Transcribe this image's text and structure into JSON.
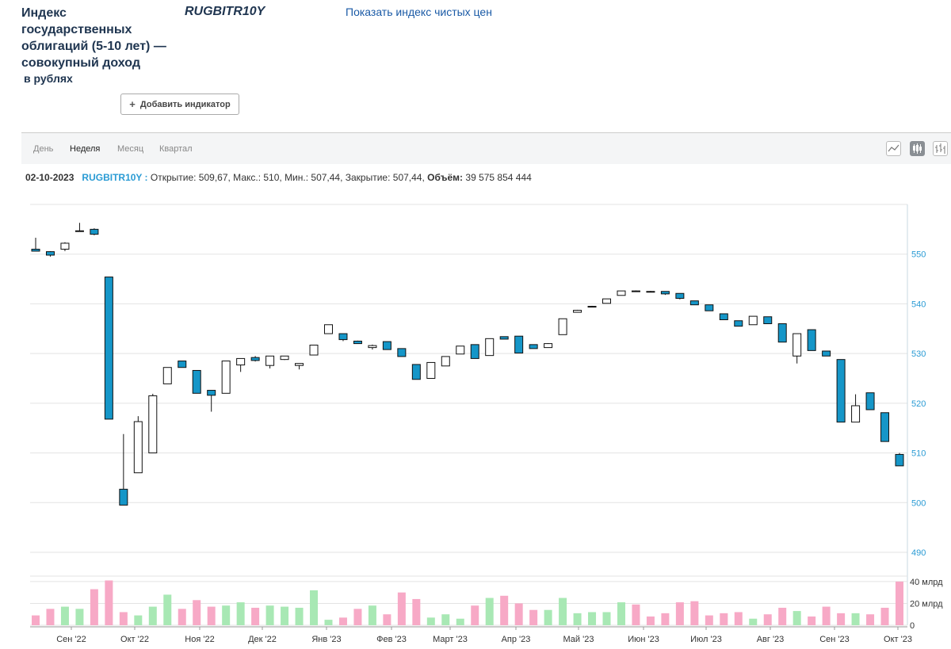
{
  "header": {
    "title": "Индекс государственных облигаций (5-10 лет) — совокупный доход",
    "subtitle": "в рублях",
    "ticker": "RUGBITR10Y",
    "clean_price_link": "Показать индекс чистых цен",
    "add_indicator_label": "Добавить индикатор",
    "add_indicator_icon": "plus-icon"
  },
  "toolbar": {
    "tabs": [
      "День",
      "Неделя",
      "Месяц",
      "Квартал"
    ],
    "active_tab": "Неделя",
    "icons": [
      "line-chart-icon",
      "candlestick-icon",
      "ohlc-bars-icon"
    ]
  },
  "info_bar": {
    "date": "02-10-2023",
    "symbol": "RUGBITR10Y :",
    "ohlc_text": "Открытие: 509,67, Макс.: 510, Мин.: 507,44, Закрытие: 507,44,",
    "volume_label": "Объём:",
    "volume_value": "39 575 854 444"
  },
  "colors": {
    "down": "#1596c8",
    "up": "#ffffff",
    "vol_up": "#a8e8b4",
    "vol_down": "#f7a9c6",
    "axis_text": "#2a9bd4",
    "grid": "#e3e3e3"
  },
  "chart_data": {
    "type": "candlestick",
    "title": "",
    "price_ylim": [
      490,
      560
    ],
    "price_ticks": [
      490,
      500,
      510,
      520,
      530,
      540,
      550
    ],
    "volume_ticks": [
      "0",
      "20 млрд",
      "40 млрд"
    ],
    "volume_unit": "млрд",
    "x_tick_labels": [
      "Сен '22",
      "Окт '22",
      "Ноя '22",
      "Дек '22",
      "Янв '23",
      "Фев '23",
      "Март '23",
      "Апр '23",
      "Май '23",
      "Июн '23",
      "Июл '23",
      "Авг '23",
      "Сен '23",
      "Окт '23"
    ],
    "candles": [
      {
        "o": 551.0,
        "h": 553.3,
        "l": 550.6,
        "c": 550.6,
        "v": 9
      },
      {
        "o": 550.5,
        "h": 550.6,
        "l": 549.5,
        "c": 549.8,
        "v": 15
      },
      {
        "o": 551.0,
        "h": 552.4,
        "l": 550.6,
        "c": 552.2,
        "v": 17
      },
      {
        "o": 554.6,
        "h": 556.3,
        "l": 554.6,
        "c": 554.7,
        "v": 15
      },
      {
        "o": 555.0,
        "h": 555.2,
        "l": 553.8,
        "c": 554.0,
        "v": 33
      },
      {
        "o": 545.4,
        "h": 545.4,
        "l": 516.8,
        "c": 516.8,
        "v": 41
      },
      {
        "o": 502.7,
        "h": 513.8,
        "l": 499.5,
        "c": 499.5,
        "v": 12
      },
      {
        "o": 506.0,
        "h": 517.4,
        "l": 506.0,
        "c": 516.3,
        "v": 9
      },
      {
        "o": 510.0,
        "h": 521.9,
        "l": 510.0,
        "c": 521.5,
        "v": 17
      },
      {
        "o": 523.9,
        "h": 527.2,
        "l": 523.9,
        "c": 527.2,
        "v": 28
      },
      {
        "o": 528.5,
        "h": 528.5,
        "l": 527.2,
        "c": 527.2,
        "v": 15
      },
      {
        "o": 526.6,
        "h": 526.6,
        "l": 522.0,
        "c": 522.0,
        "v": 23
      },
      {
        "o": 522.6,
        "h": 522.6,
        "l": 518.3,
        "c": 521.6,
        "v": 17
      },
      {
        "o": 522.0,
        "h": 528.5,
        "l": 522.0,
        "c": 528.5,
        "v": 18
      },
      {
        "o": 527.7,
        "h": 529.0,
        "l": 526.3,
        "c": 529.0,
        "v": 21
      },
      {
        "o": 529.2,
        "h": 529.5,
        "l": 528.4,
        "c": 528.6,
        "v": 16
      },
      {
        "o": 527.6,
        "h": 529.5,
        "l": 527.0,
        "c": 529.5,
        "v": 18
      },
      {
        "o": 528.8,
        "h": 529.5,
        "l": 528.7,
        "c": 529.5,
        "v": 17
      },
      {
        "o": 527.6,
        "h": 528.0,
        "l": 526.8,
        "c": 528.0,
        "v": 16
      },
      {
        "o": 529.7,
        "h": 531.7,
        "l": 529.7,
        "c": 531.7,
        "v": 32
      },
      {
        "o": 534.0,
        "h": 535.8,
        "l": 534.0,
        "c": 535.8,
        "v": 5
      },
      {
        "o": 534.0,
        "h": 534.0,
        "l": 532.5,
        "c": 532.8,
        "v": 7
      },
      {
        "o": 532.5,
        "h": 532.6,
        "l": 532.0,
        "c": 532.0,
        "v": 15
      },
      {
        "o": 531.2,
        "h": 531.8,
        "l": 530.8,
        "c": 531.6,
        "v": 18
      },
      {
        "o": 532.4,
        "h": 532.4,
        "l": 530.8,
        "c": 530.8,
        "v": 10
      },
      {
        "o": 531.0,
        "h": 531.0,
        "l": 529.4,
        "c": 529.4,
        "v": 30
      },
      {
        "o": 527.8,
        "h": 527.8,
        "l": 524.8,
        "c": 524.8,
        "v": 24
      },
      {
        "o": 525.0,
        "h": 528.2,
        "l": 525.0,
        "c": 528.2,
        "v": 7
      },
      {
        "o": 527.5,
        "h": 529.4,
        "l": 527.5,
        "c": 529.4,
        "v": 10
      },
      {
        "o": 529.9,
        "h": 531.5,
        "l": 529.9,
        "c": 531.5,
        "v": 6
      },
      {
        "o": 531.8,
        "h": 531.8,
        "l": 529.0,
        "c": 529.0,
        "v": 18
      },
      {
        "o": 529.6,
        "h": 533.0,
        "l": 529.6,
        "c": 533.0,
        "v": 25
      },
      {
        "o": 533.4,
        "h": 533.4,
        "l": 532.9,
        "c": 532.9,
        "v": 27
      },
      {
        "o": 533.5,
        "h": 533.5,
        "l": 530.1,
        "c": 530.1,
        "v": 20
      },
      {
        "o": 531.8,
        "h": 531.8,
        "l": 531.0,
        "c": 531.0,
        "v": 14
      },
      {
        "o": 531.2,
        "h": 532.1,
        "l": 531.2,
        "c": 532.0,
        "v": 14
      },
      {
        "o": 533.8,
        "h": 537.0,
        "l": 533.8,
        "c": 537.0,
        "v": 25
      },
      {
        "o": 538.3,
        "h": 538.8,
        "l": 538.3,
        "c": 538.7,
        "v": 11
      },
      {
        "o": 539.4,
        "h": 539.6,
        "l": 539.3,
        "c": 539.5,
        "v": 12
      },
      {
        "o": 540.1,
        "h": 541.0,
        "l": 540.1,
        "c": 541.0,
        "v": 12
      },
      {
        "o": 541.7,
        "h": 542.6,
        "l": 541.7,
        "c": 542.6,
        "v": 21
      },
      {
        "o": 542.6,
        "h": 542.7,
        "l": 542.4,
        "c": 542.5,
        "v": 19
      },
      {
        "o": 542.5,
        "h": 542.6,
        "l": 542.4,
        "c": 542.4,
        "v": 8
      },
      {
        "o": 542.5,
        "h": 542.5,
        "l": 541.8,
        "c": 542.0,
        "v": 11
      },
      {
        "o": 542.1,
        "h": 542.1,
        "l": 540.9,
        "c": 541.1,
        "v": 21
      },
      {
        "o": 540.6,
        "h": 540.6,
        "l": 539.8,
        "c": 539.8,
        "v": 22
      },
      {
        "o": 539.8,
        "h": 539.8,
        "l": 538.6,
        "c": 538.6,
        "v": 9
      },
      {
        "o": 538.0,
        "h": 538.0,
        "l": 536.8,
        "c": 536.8,
        "v": 11
      },
      {
        "o": 536.6,
        "h": 536.6,
        "l": 535.5,
        "c": 535.5,
        "v": 12
      },
      {
        "o": 535.8,
        "h": 537.5,
        "l": 535.8,
        "c": 537.5,
        "v": 6
      },
      {
        "o": 537.4,
        "h": 537.4,
        "l": 536.0,
        "c": 536.0,
        "v": 10
      },
      {
        "o": 536.0,
        "h": 536.0,
        "l": 532.3,
        "c": 532.3,
        "v": 16
      },
      {
        "o": 529.5,
        "h": 534.0,
        "l": 528.0,
        "c": 534.0,
        "v": 13
      },
      {
        "o": 534.8,
        "h": 534.8,
        "l": 530.6,
        "c": 530.6,
        "v": 8
      },
      {
        "o": 530.5,
        "h": 530.5,
        "l": 529.5,
        "c": 529.5,
        "v": 17
      },
      {
        "o": 528.8,
        "h": 528.8,
        "l": 516.2,
        "c": 516.2,
        "v": 11
      },
      {
        "o": 516.2,
        "h": 521.8,
        "l": 516.2,
        "c": 519.5,
        "v": 11
      },
      {
        "o": 522.1,
        "h": 522.1,
        "l": 518.7,
        "c": 518.7,
        "v": 10
      },
      {
        "o": 518.1,
        "h": 518.1,
        "l": 512.3,
        "c": 512.3,
        "v": 16
      },
      {
        "o": 509.7,
        "h": 510.0,
        "l": 507.4,
        "c": 507.4,
        "v": 40
      }
    ]
  }
}
